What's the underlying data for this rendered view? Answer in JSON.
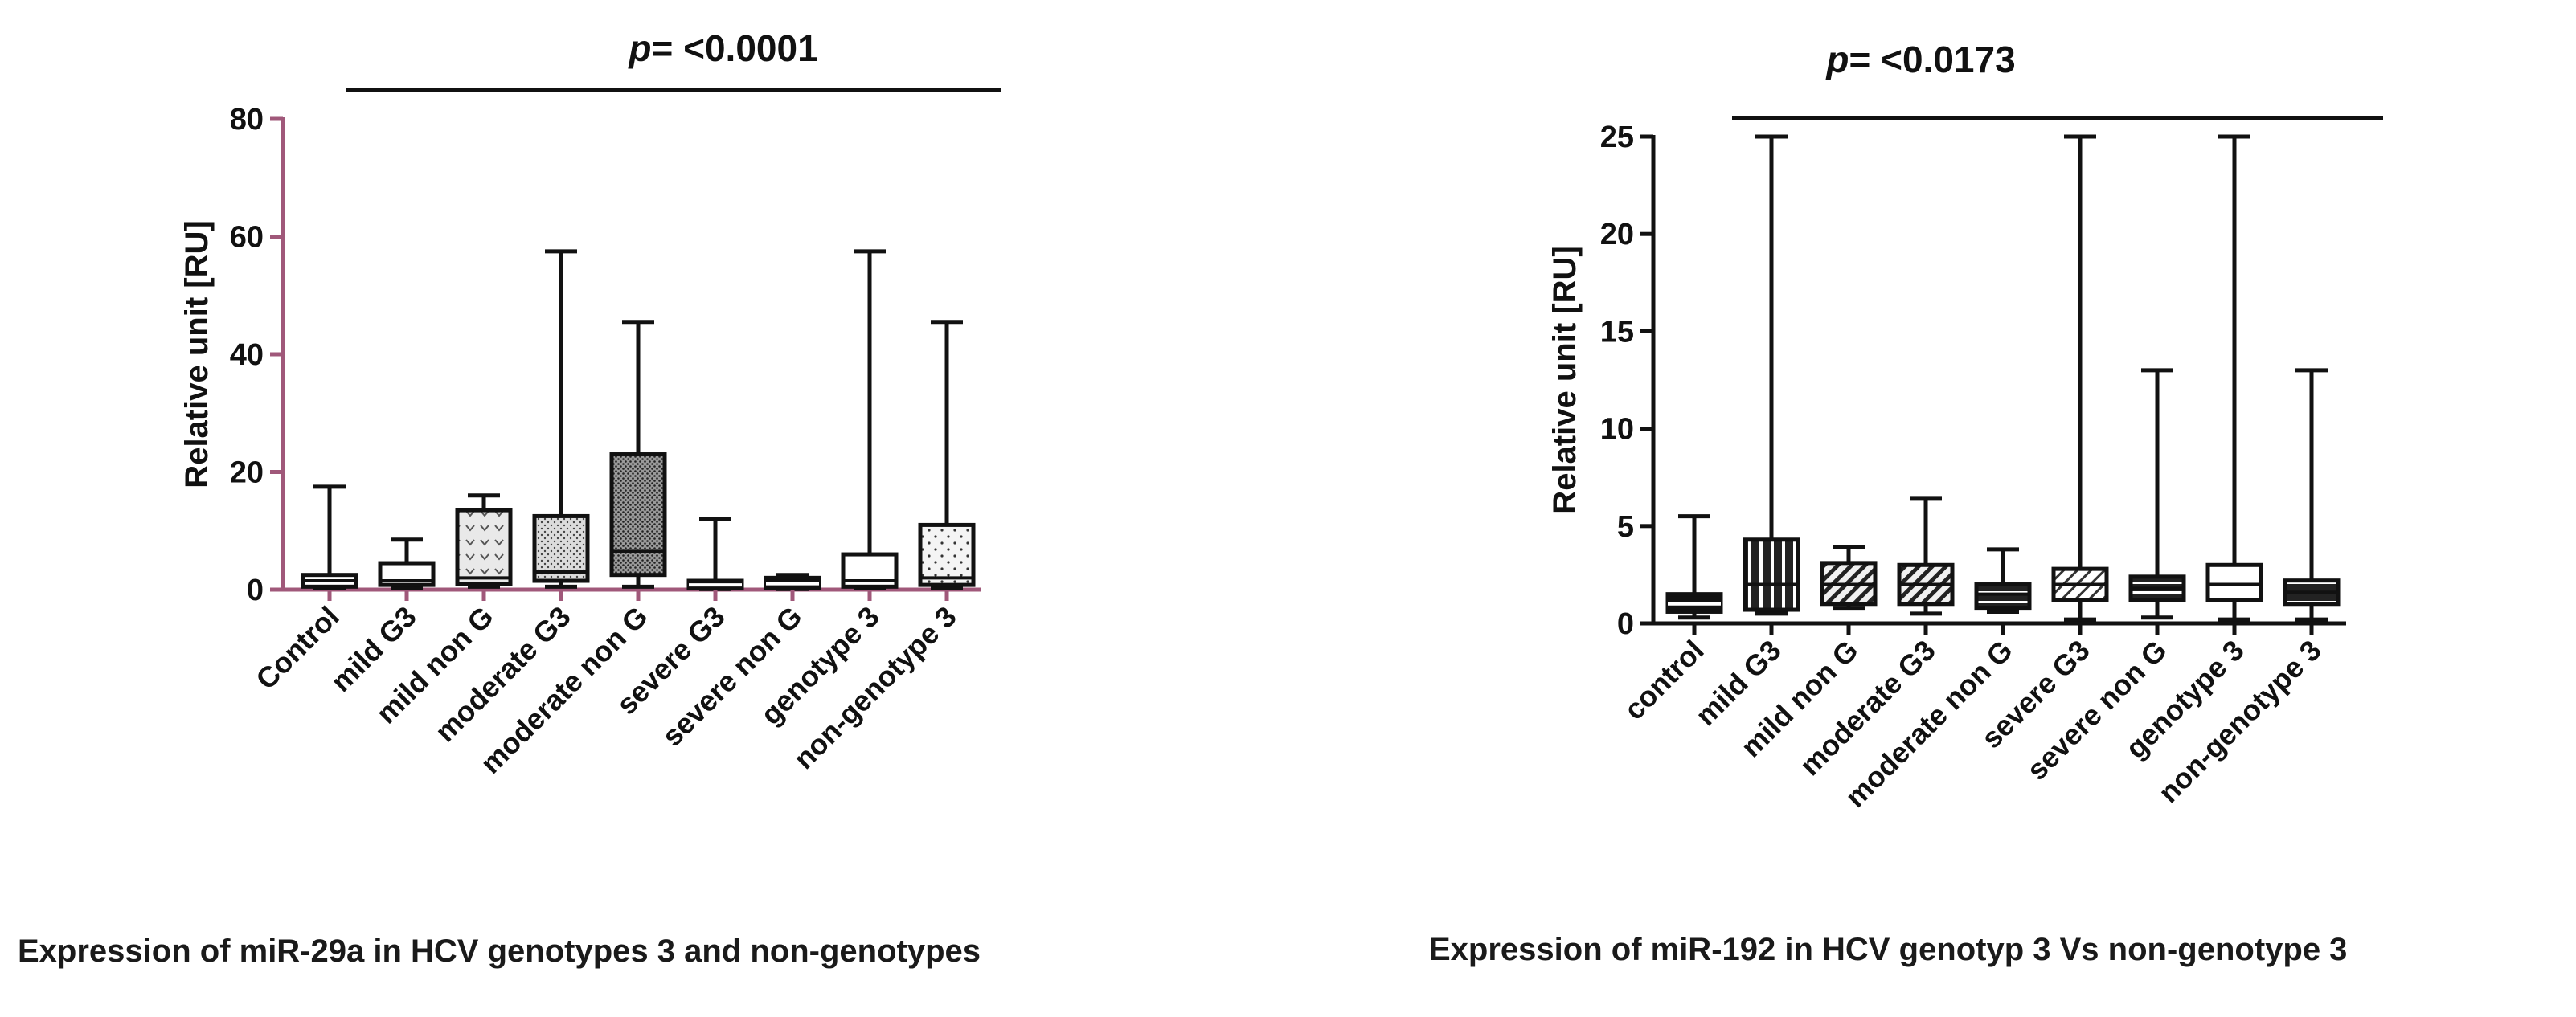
{
  "chart_data": [
    {
      "type": "box",
      "title_prefix": "p",
      "title_value": "= <0.0001",
      "ylabel": "Relative unit [RU]",
      "xlabel": "",
      "ylim": [
        0,
        80
      ],
      "yticks": [
        0,
        20,
        40,
        60,
        80
      ],
      "ytick_labels": [
        "0",
        "20",
        "40",
        "60",
        "80"
      ],
      "caption": "Expression of miR-29a in HCV genotypes 3 and non-genotypes",
      "categories": [
        "Control",
        "mild G3",
        "mild non G",
        "moderate G3",
        "moderate non G",
        "severe G3",
        "severe non G",
        "genotype 3",
        "non-genotype 3"
      ],
      "boxes": [
        {
          "min": 0.2,
          "q1": 0.5,
          "median": 1.5,
          "q3": 2.5,
          "max": 17.5,
          "fill": "white"
        },
        {
          "min": 0.3,
          "q1": 0.8,
          "median": 1.5,
          "q3": 4.5,
          "max": 8.5,
          "fill": "white"
        },
        {
          "min": 0.5,
          "q1": 1.0,
          "median": 2.0,
          "q3": 13.5,
          "max": 16.0,
          "fill": "hearts"
        },
        {
          "min": 0.5,
          "q1": 1.5,
          "median": 3.0,
          "q3": 12.5,
          "max": 57.5,
          "fill": "stipple"
        },
        {
          "min": 0.5,
          "q1": 2.5,
          "median": 6.5,
          "q3": 23.0,
          "max": 45.5,
          "fill": "crosshatch"
        },
        {
          "min": 0.1,
          "q1": 0.2,
          "median": 0.8,
          "q3": 1.5,
          "max": 12.0,
          "fill": "solid"
        },
        {
          "min": 0.1,
          "q1": 0.3,
          "median": 1.0,
          "q3": 2.0,
          "max": 2.5,
          "fill": "solid"
        },
        {
          "min": 0.2,
          "q1": 0.5,
          "median": 1.5,
          "q3": 6.0,
          "max": 57.5,
          "fill": "white"
        },
        {
          "min": 0.3,
          "q1": 0.8,
          "median": 2.0,
          "q3": 11.0,
          "max": 45.5,
          "fill": "dots"
        }
      ]
    },
    {
      "type": "box",
      "title_prefix": "p",
      "title_value": "= <0.0173",
      "ylabel": "Relative unit [RU]",
      "xlabel": "",
      "ylim": [
        0,
        25
      ],
      "yticks": [
        0,
        5,
        10,
        15,
        20,
        25
      ],
      "ytick_labels": [
        "0",
        "5",
        "10",
        "15",
        "20",
        "25"
      ],
      "caption": "Expression of miR-192 in HCV genotyp 3 Vs non-genotype 3",
      "categories": [
        "control",
        "mild G3",
        "mild non G",
        "moderate G3",
        "moderate non G",
        "severe G3",
        "severe non G",
        "genotype 3",
        "non-genotype 3"
      ],
      "boxes": [
        {
          "min": 0.3,
          "q1": 0.6,
          "median": 1.0,
          "q3": 1.5,
          "max": 5.5,
          "fill": "solid"
        },
        {
          "min": 0.5,
          "q1": 0.7,
          "median": 2.0,
          "q3": 4.3,
          "max": 25.0,
          "fill": "vstripes"
        },
        {
          "min": 0.8,
          "q1": 1.0,
          "median": 2.0,
          "q3": 3.1,
          "max": 3.9,
          "fill": "diag"
        },
        {
          "min": 0.5,
          "q1": 1.0,
          "median": 2.0,
          "q3": 3.0,
          "max": 6.4,
          "fill": "diag"
        },
        {
          "min": 0.6,
          "q1": 0.8,
          "median": 1.5,
          "q3": 2.0,
          "max": 3.8,
          "fill": "hstripes"
        },
        {
          "min": 0.2,
          "q1": 1.2,
          "median": 2.0,
          "q3": 2.8,
          "max": 25.0,
          "fill": "diaglight"
        },
        {
          "min": 0.3,
          "q1": 1.2,
          "median": 1.8,
          "q3": 2.4,
          "max": 13.0,
          "fill": "hstripes"
        },
        {
          "min": 0.2,
          "q1": 1.2,
          "median": 2.0,
          "q3": 3.0,
          "max": 25.0,
          "fill": "white"
        },
        {
          "min": 0.2,
          "q1": 1.0,
          "median": 1.6,
          "q3": 2.2,
          "max": 13.0,
          "fill": "hstripes"
        }
      ]
    }
  ]
}
